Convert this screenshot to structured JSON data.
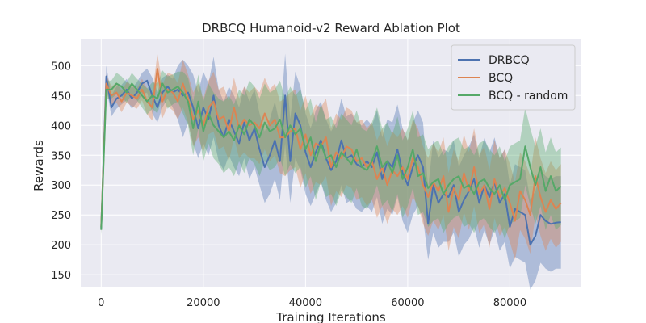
{
  "chart_data": {
    "type": "line",
    "title": "DRBCQ Humanoid-v2 Reward Ablation Plot",
    "xlabel": "Training Iterations",
    "ylabel": "Rewards",
    "xlim": [
      -4000,
      94000
    ],
    "ylim": [
      130,
      545
    ],
    "xticks": [
      0,
      20000,
      40000,
      60000,
      80000
    ],
    "yticks": [
      150,
      200,
      250,
      300,
      350,
      400,
      450,
      500
    ],
    "grid": true,
    "legend_position": "top-right",
    "plot_background": "#eaeaf2",
    "x": [
      0,
      1000,
      2000,
      3000,
      4000,
      5000,
      6000,
      7000,
      8000,
      9000,
      10000,
      11000,
      12000,
      13000,
      14000,
      15000,
      16000,
      17000,
      18000,
      19000,
      20000,
      21000,
      22000,
      23000,
      24000,
      25000,
      26000,
      27000,
      28000,
      29000,
      30000,
      31000,
      32000,
      33000,
      34000,
      35000,
      36000,
      37000,
      38000,
      39000,
      40000,
      41000,
      42000,
      43000,
      44000,
      45000,
      46000,
      47000,
      48000,
      49000,
      50000,
      51000,
      52000,
      53000,
      54000,
      55000,
      56000,
      57000,
      58000,
      59000,
      60000,
      61000,
      62000,
      63000,
      64000,
      65000,
      66000,
      67000,
      68000,
      69000,
      70000,
      71000,
      72000,
      73000,
      74000,
      75000,
      76000,
      77000,
      78000,
      79000,
      80000,
      81000,
      82000,
      83000,
      84000,
      85000,
      86000,
      87000,
      88000,
      89000,
      90000
    ],
    "series": [
      {
        "name": "DRBCQ",
        "color": "#4c72b0",
        "values": [
          228,
          482,
          430,
          445,
          450,
          460,
          445,
          455,
          470,
          475,
          450,
          430,
          455,
          465,
          455,
          460,
          450,
          455,
          430,
          395,
          430,
          410,
          450,
          400,
          380,
          410,
          390,
          370,
          405,
          375,
          395,
          360,
          330,
          350,
          375,
          340,
          450,
          340,
          420,
          400,
          355,
          330,
          355,
          375,
          345,
          325,
          340,
          375,
          345,
          350,
          335,
          330,
          340,
          330,
          355,
          310,
          340,
          330,
          360,
          320,
          300,
          330,
          350,
          330,
          235,
          300,
          270,
          285,
          280,
          300,
          255,
          275,
          290,
          310,
          270,
          300,
          280,
          305,
          270,
          285,
          230,
          260,
          255,
          250,
          200,
          215,
          250,
          240,
          235,
          237,
          238
        ],
        "lower": [
          218,
          465,
          415,
          428,
          435,
          442,
          428,
          438,
          452,
          455,
          420,
          405,
          430,
          445,
          430,
          410,
          380,
          405,
          370,
          345,
          370,
          350,
          380,
          340,
          325,
          350,
          330,
          315,
          345,
          310,
          330,
          300,
          270,
          285,
          310,
          275,
          370,
          270,
          345,
          325,
          285,
          265,
          285,
          305,
          275,
          255,
          270,
          300,
          270,
          275,
          260,
          255,
          265,
          255,
          280,
          235,
          260,
          250,
          280,
          240,
          220,
          250,
          265,
          245,
          175,
          220,
          195,
          205,
          205,
          220,
          180,
          200,
          210,
          230,
          195,
          225,
          200,
          225,
          190,
          205,
          160,
          180,
          175,
          170,
          125,
          140,
          170,
          160,
          155,
          160,
          160
        ],
        "upper": [
          238,
          500,
          450,
          465,
          468,
          478,
          462,
          472,
          488,
          495,
          480,
          455,
          480,
          485,
          478,
          500,
          510,
          500,
          485,
          455,
          490,
          470,
          515,
          460,
          440,
          465,
          450,
          430,
          465,
          440,
          460,
          420,
          390,
          410,
          440,
          400,
          520,
          410,
          490,
          465,
          420,
          395,
          425,
          440,
          410,
          390,
          405,
          445,
          415,
          420,
          405,
          400,
          410,
          400,
          425,
          380,
          410,
          405,
          435,
          395,
          375,
          405,
          425,
          405,
          295,
          375,
          345,
          360,
          355,
          375,
          330,
          350,
          365,
          385,
          345,
          380,
          355,
          380,
          345,
          360,
          300,
          335,
          330,
          325,
          275,
          290,
          325,
          315,
          310,
          315,
          315
        ]
      },
      {
        "name": "BCQ",
        "color": "#dd8452",
        "values": [
          230,
          470,
          450,
          455,
          440,
          455,
          450,
          445,
          460,
          440,
          430,
          495,
          440,
          460,
          455,
          440,
          470,
          445,
          410,
          425,
          400,
          430,
          440,
          410,
          415,
          390,
          430,
          395,
          410,
          400,
          405,
          395,
          420,
          400,
          410,
          380,
          380,
          390,
          395,
          360,
          385,
          350,
          370,
          365,
          380,
          330,
          355,
          345,
          365,
          360,
          340,
          345,
          330,
          340,
          310,
          330,
          300,
          325,
          315,
          330,
          310,
          345,
          330,
          300,
          280,
          305,
          290,
          315,
          255,
          295,
          275,
          320,
          290,
          330,
          285,
          300,
          260,
          310,
          280,
          295,
          270,
          240,
          290,
          275,
          250,
          315,
          280,
          255,
          275,
          260,
          270
        ],
        "lower": [
          220,
          455,
          435,
          438,
          422,
          438,
          432,
          428,
          442,
          418,
          408,
          470,
          412,
          432,
          425,
          410,
          430,
          405,
          365,
          380,
          355,
          385,
          390,
          360,
          365,
          340,
          380,
          345,
          355,
          345,
          345,
          335,
          360,
          340,
          350,
          320,
          315,
          325,
          330,
          295,
          320,
          285,
          305,
          300,
          315,
          265,
          290,
          280,
          300,
          295,
          275,
          280,
          265,
          275,
          245,
          265,
          235,
          260,
          250,
          265,
          245,
          280,
          265,
          235,
          215,
          240,
          225,
          250,
          190,
          230,
          210,
          255,
          225,
          265,
          220,
          235,
          195,
          245,
          215,
          230,
          205,
          175,
          225,
          210,
          185,
          250,
          215,
          190,
          210,
          195,
          205
        ],
        "upper": [
          240,
          485,
          465,
          472,
          458,
          472,
          468,
          462,
          478,
          462,
          452,
          520,
          468,
          488,
          485,
          470,
          510,
          485,
          455,
          470,
          445,
          475,
          490,
          460,
          465,
          440,
          480,
          445,
          465,
          455,
          465,
          455,
          480,
          460,
          470,
          440,
          445,
          455,
          460,
          425,
          450,
          415,
          435,
          430,
          445,
          395,
          420,
          410,
          430,
          425,
          405,
          410,
          395,
          405,
          375,
          395,
          365,
          390,
          380,
          395,
          375,
          410,
          395,
          365,
          345,
          370,
          355,
          380,
          320,
          360,
          340,
          385,
          355,
          395,
          350,
          365,
          325,
          375,
          345,
          360,
          335,
          305,
          355,
          340,
          315,
          380,
          345,
          320,
          340,
          325,
          335
        ]
      },
      {
        "name": "BCQ - random",
        "color": "#55a868",
        "values": [
          225,
          460,
          460,
          470,
          465,
          455,
          470,
          460,
          450,
          440,
          450,
          445,
          470,
          455,
          460,
          465,
          455,
          440,
          395,
          440,
          390,
          420,
          400,
          390,
          380,
          390,
          375,
          400,
          385,
          410,
          400,
          380,
          405,
          390,
          395,
          410,
          380,
          400,
          385,
          395,
          360,
          380,
          340,
          370,
          345,
          350,
          330,
          355,
          345,
          335,
          360,
          330,
          325,
          340,
          365,
          330,
          340,
          320,
          350,
          310,
          330,
          360,
          315,
          320,
          295,
          305,
          310,
          285,
          300,
          310,
          315,
          295,
          300,
          285,
          305,
          310,
          295,
          285,
          300,
          275,
          300,
          305,
          310,
          365,
          330,
          300,
          330,
          290,
          315,
          290,
          298
        ],
        "lower": [
          215,
          445,
          445,
          452,
          448,
          438,
          452,
          442,
          430,
          418,
          428,
          420,
          448,
          428,
          435,
          440,
          420,
          400,
          350,
          395,
          340,
          370,
          345,
          335,
          320,
          330,
          315,
          340,
          320,
          345,
          335,
          315,
          340,
          325,
          330,
          345,
          315,
          335,
          320,
          330,
          295,
          315,
          275,
          305,
          280,
          285,
          265,
          290,
          280,
          270,
          295,
          265,
          260,
          275,
          300,
          265,
          275,
          255,
          285,
          245,
          265,
          295,
          250,
          255,
          230,
          240,
          245,
          220,
          235,
          245,
          250,
          230,
          235,
          220,
          240,
          245,
          230,
          220,
          235,
          210,
          235,
          240,
          245,
          300,
          265,
          235,
          265,
          225,
          250,
          225,
          233
        ],
        "upper": [
          235,
          475,
          475,
          488,
          482,
          472,
          488,
          478,
          470,
          462,
          472,
          470,
          492,
          482,
          485,
          490,
          490,
          480,
          440,
          485,
          440,
          470,
          455,
          445,
          440,
          450,
          435,
          460,
          450,
          475,
          465,
          445,
          470,
          455,
          460,
          475,
          445,
          465,
          450,
          460,
          425,
          445,
          405,
          435,
          410,
          415,
          395,
          420,
          410,
          400,
          425,
          395,
          390,
          405,
          430,
          395,
          405,
          385,
          415,
          375,
          395,
          425,
          380,
          385,
          360,
          370,
          375,
          350,
          365,
          375,
          380,
          360,
          365,
          350,
          370,
          375,
          360,
          350,
          365,
          340,
          365,
          370,
          375,
          430,
          395,
          365,
          395,
          355,
          380,
          355,
          363
        ]
      }
    ]
  }
}
